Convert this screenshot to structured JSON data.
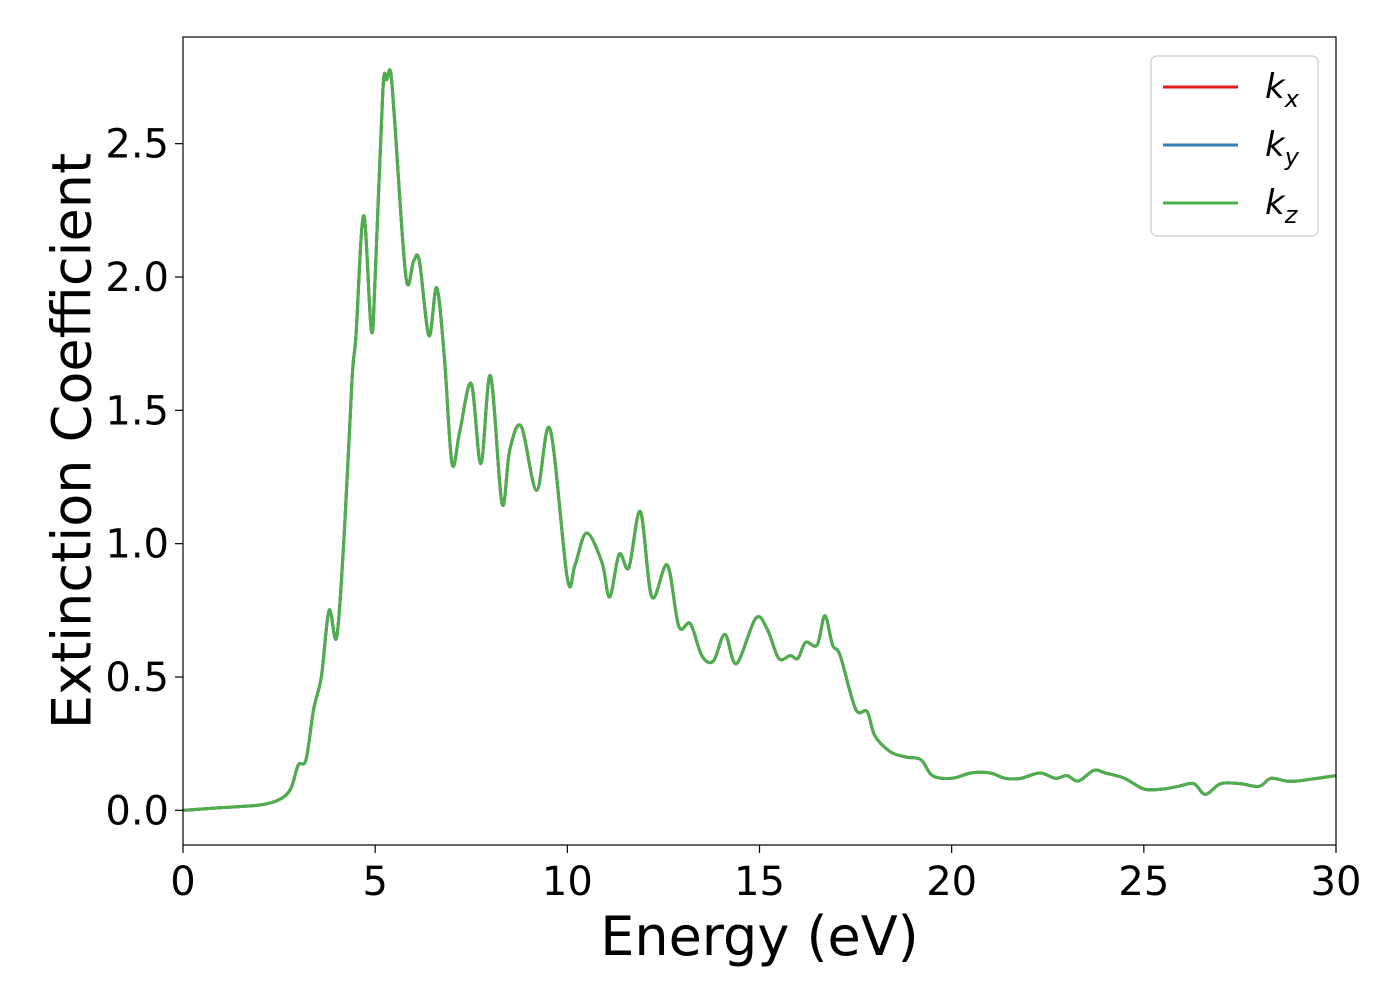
{
  "chart_data": {
    "type": "line",
    "title": "",
    "xlabel": "Energy (eV)",
    "ylabel": "Extinction Coefficient",
    "xlim": [
      0,
      30
    ],
    "ylim": [
      -0.13,
      2.9
    ],
    "xticks": [
      0,
      5,
      10,
      15,
      20,
      25,
      30
    ],
    "xtick_labels": [
      "0",
      "5",
      "10",
      "15",
      "20",
      "25",
      "30"
    ],
    "yticks": [
      0.0,
      0.5,
      1.0,
      1.5,
      2.0,
      2.5
    ],
    "ytick_labels": [
      "0.0",
      "0.5",
      "1.0",
      "1.5",
      "2.0",
      "2.5"
    ],
    "grid": false,
    "legend_position": "top-right",
    "x": [
      0,
      1,
      2,
      2.5,
      2.8,
      3.0,
      3.2,
      3.4,
      3.6,
      3.8,
      4.0,
      4.2,
      4.4,
      4.5,
      4.7,
      4.9,
      5.0,
      5.2,
      5.3,
      5.4,
      5.5,
      5.8,
      6.0,
      6.15,
      6.4,
      6.6,
      6.8,
      7.0,
      7.2,
      7.5,
      7.75,
      8.0,
      8.3,
      8.5,
      8.8,
      9.2,
      9.55,
      10.0,
      10.2,
      10.5,
      10.9,
      11.1,
      11.35,
      11.6,
      11.9,
      12.2,
      12.6,
      12.9,
      13.2,
      13.5,
      13.8,
      14.1,
      14.4,
      14.9,
      15.2,
      15.5,
      15.8,
      16.0,
      16.2,
      16.5,
      16.7,
      16.9,
      17.1,
      17.5,
      17.8,
      18.0,
      18.4,
      18.8,
      19.2,
      19.5,
      20.0,
      20.5,
      21.0,
      21.4,
      21.8,
      22.3,
      22.7,
      23.0,
      23.3,
      23.7,
      24.0,
      24.5,
      25.0,
      25.5,
      25.9,
      26.3,
      26.6,
      27.0,
      27.5,
      28.0,
      28.3,
      28.7,
      29.0,
      29.5,
      30.0
    ],
    "series": [
      {
        "name": "k_x",
        "legend_base": "k",
        "legend_sub": "x",
        "color": "#e41a1c",
        "values": [
          0.0,
          0.01,
          0.02,
          0.04,
          0.08,
          0.17,
          0.19,
          0.38,
          0.5,
          0.75,
          0.65,
          1.05,
          1.62,
          1.78,
          2.23,
          1.8,
          2.0,
          2.7,
          2.74,
          2.77,
          2.6,
          2.0,
          2.06,
          2.06,
          1.78,
          1.96,
          1.7,
          1.3,
          1.42,
          1.6,
          1.3,
          1.63,
          1.15,
          1.35,
          1.44,
          1.2,
          1.43,
          0.87,
          0.92,
          1.04,
          0.93,
          0.8,
          0.96,
          0.91,
          1.12,
          0.8,
          0.92,
          0.69,
          0.7,
          0.58,
          0.56,
          0.66,
          0.55,
          0.72,
          0.68,
          0.57,
          0.58,
          0.57,
          0.63,
          0.62,
          0.73,
          0.62,
          0.58,
          0.38,
          0.37,
          0.28,
          0.22,
          0.2,
          0.19,
          0.13,
          0.12,
          0.14,
          0.14,
          0.12,
          0.12,
          0.14,
          0.12,
          0.13,
          0.11,
          0.15,
          0.14,
          0.12,
          0.08,
          0.08,
          0.09,
          0.1,
          0.06,
          0.1,
          0.1,
          0.09,
          0.12,
          0.11,
          0.11,
          0.12,
          0.13
        ]
      },
      {
        "name": "k_y",
        "legend_base": "k",
        "legend_sub": "y",
        "color": "#377eb8",
        "values": [
          0.0,
          0.01,
          0.02,
          0.04,
          0.08,
          0.17,
          0.19,
          0.38,
          0.5,
          0.75,
          0.65,
          1.05,
          1.62,
          1.78,
          2.23,
          1.8,
          2.0,
          2.7,
          2.74,
          2.77,
          2.6,
          2.0,
          2.06,
          2.06,
          1.78,
          1.96,
          1.7,
          1.3,
          1.42,
          1.6,
          1.3,
          1.63,
          1.15,
          1.35,
          1.44,
          1.2,
          1.43,
          0.87,
          0.92,
          1.04,
          0.93,
          0.8,
          0.96,
          0.91,
          1.12,
          0.8,
          0.92,
          0.69,
          0.7,
          0.58,
          0.56,
          0.66,
          0.55,
          0.72,
          0.68,
          0.57,
          0.58,
          0.57,
          0.63,
          0.62,
          0.73,
          0.62,
          0.58,
          0.38,
          0.37,
          0.28,
          0.22,
          0.2,
          0.19,
          0.13,
          0.12,
          0.14,
          0.14,
          0.12,
          0.12,
          0.14,
          0.12,
          0.13,
          0.11,
          0.15,
          0.14,
          0.12,
          0.08,
          0.08,
          0.09,
          0.1,
          0.06,
          0.1,
          0.1,
          0.09,
          0.12,
          0.11,
          0.11,
          0.12,
          0.13
        ]
      },
      {
        "name": "k_z",
        "legend_base": "k",
        "legend_sub": "z",
        "color": "#4daf4a",
        "values": [
          0.0,
          0.01,
          0.02,
          0.04,
          0.08,
          0.17,
          0.19,
          0.38,
          0.5,
          0.75,
          0.65,
          1.05,
          1.62,
          1.78,
          2.23,
          1.8,
          2.0,
          2.7,
          2.74,
          2.77,
          2.6,
          2.0,
          2.06,
          2.06,
          1.78,
          1.96,
          1.7,
          1.3,
          1.42,
          1.6,
          1.3,
          1.63,
          1.15,
          1.35,
          1.44,
          1.2,
          1.43,
          0.87,
          0.92,
          1.04,
          0.93,
          0.8,
          0.96,
          0.91,
          1.12,
          0.8,
          0.92,
          0.69,
          0.7,
          0.58,
          0.56,
          0.66,
          0.55,
          0.72,
          0.68,
          0.57,
          0.58,
          0.57,
          0.63,
          0.62,
          0.73,
          0.62,
          0.58,
          0.38,
          0.37,
          0.28,
          0.22,
          0.2,
          0.19,
          0.13,
          0.12,
          0.14,
          0.14,
          0.12,
          0.12,
          0.14,
          0.12,
          0.13,
          0.11,
          0.15,
          0.14,
          0.12,
          0.08,
          0.08,
          0.09,
          0.1,
          0.06,
          0.1,
          0.1,
          0.09,
          0.12,
          0.11,
          0.11,
          0.12,
          0.13
        ]
      }
    ]
  }
}
